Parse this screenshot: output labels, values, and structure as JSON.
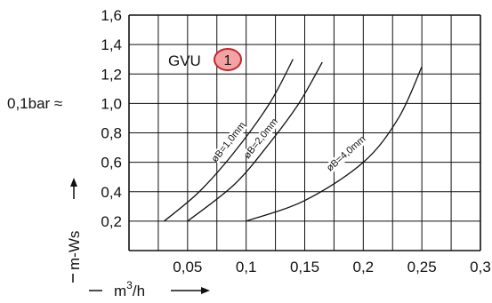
{
  "chart_data": {
    "type": "line",
    "x_ticks": [
      "0,05",
      "0,1",
      "0,15",
      "0,2",
      "0,25",
      "0,3"
    ],
    "y_ticks": [
      "0,2",
      "0,4",
      "0,6",
      "0,8",
      "1,0",
      "1,2",
      "1,4",
      "1,6"
    ],
    "xlim": [
      0.0,
      0.3
    ],
    "ylim": [
      0.0,
      1.6
    ],
    "grid": true,
    "xlabel": "m³/h",
    "xlabel_parts": {
      "base": "m",
      "sup": "3",
      "tail": "/h"
    },
    "ylabel": "m-Ws",
    "y_annotation": "0,1bar ≈",
    "device_label": "GVU",
    "badge_number": "1",
    "badge_color": "#f4a3a3",
    "series": [
      {
        "name": "øB=1,0mm",
        "x": [
          0.03,
          0.06,
          0.09,
          0.12,
          0.14
        ],
        "y": [
          0.2,
          0.4,
          0.67,
          1.0,
          1.3
        ]
      },
      {
        "name": "øB=2,0mm",
        "x": [
          0.05,
          0.09,
          0.12,
          0.145,
          0.165
        ],
        "y": [
          0.2,
          0.45,
          0.73,
          1.0,
          1.28
        ]
      },
      {
        "name": "øB=4,0mm",
        "x": [
          0.1,
          0.15,
          0.2,
          0.23,
          0.25
        ],
        "y": [
          0.2,
          0.34,
          0.6,
          0.9,
          1.25
        ]
      }
    ]
  }
}
